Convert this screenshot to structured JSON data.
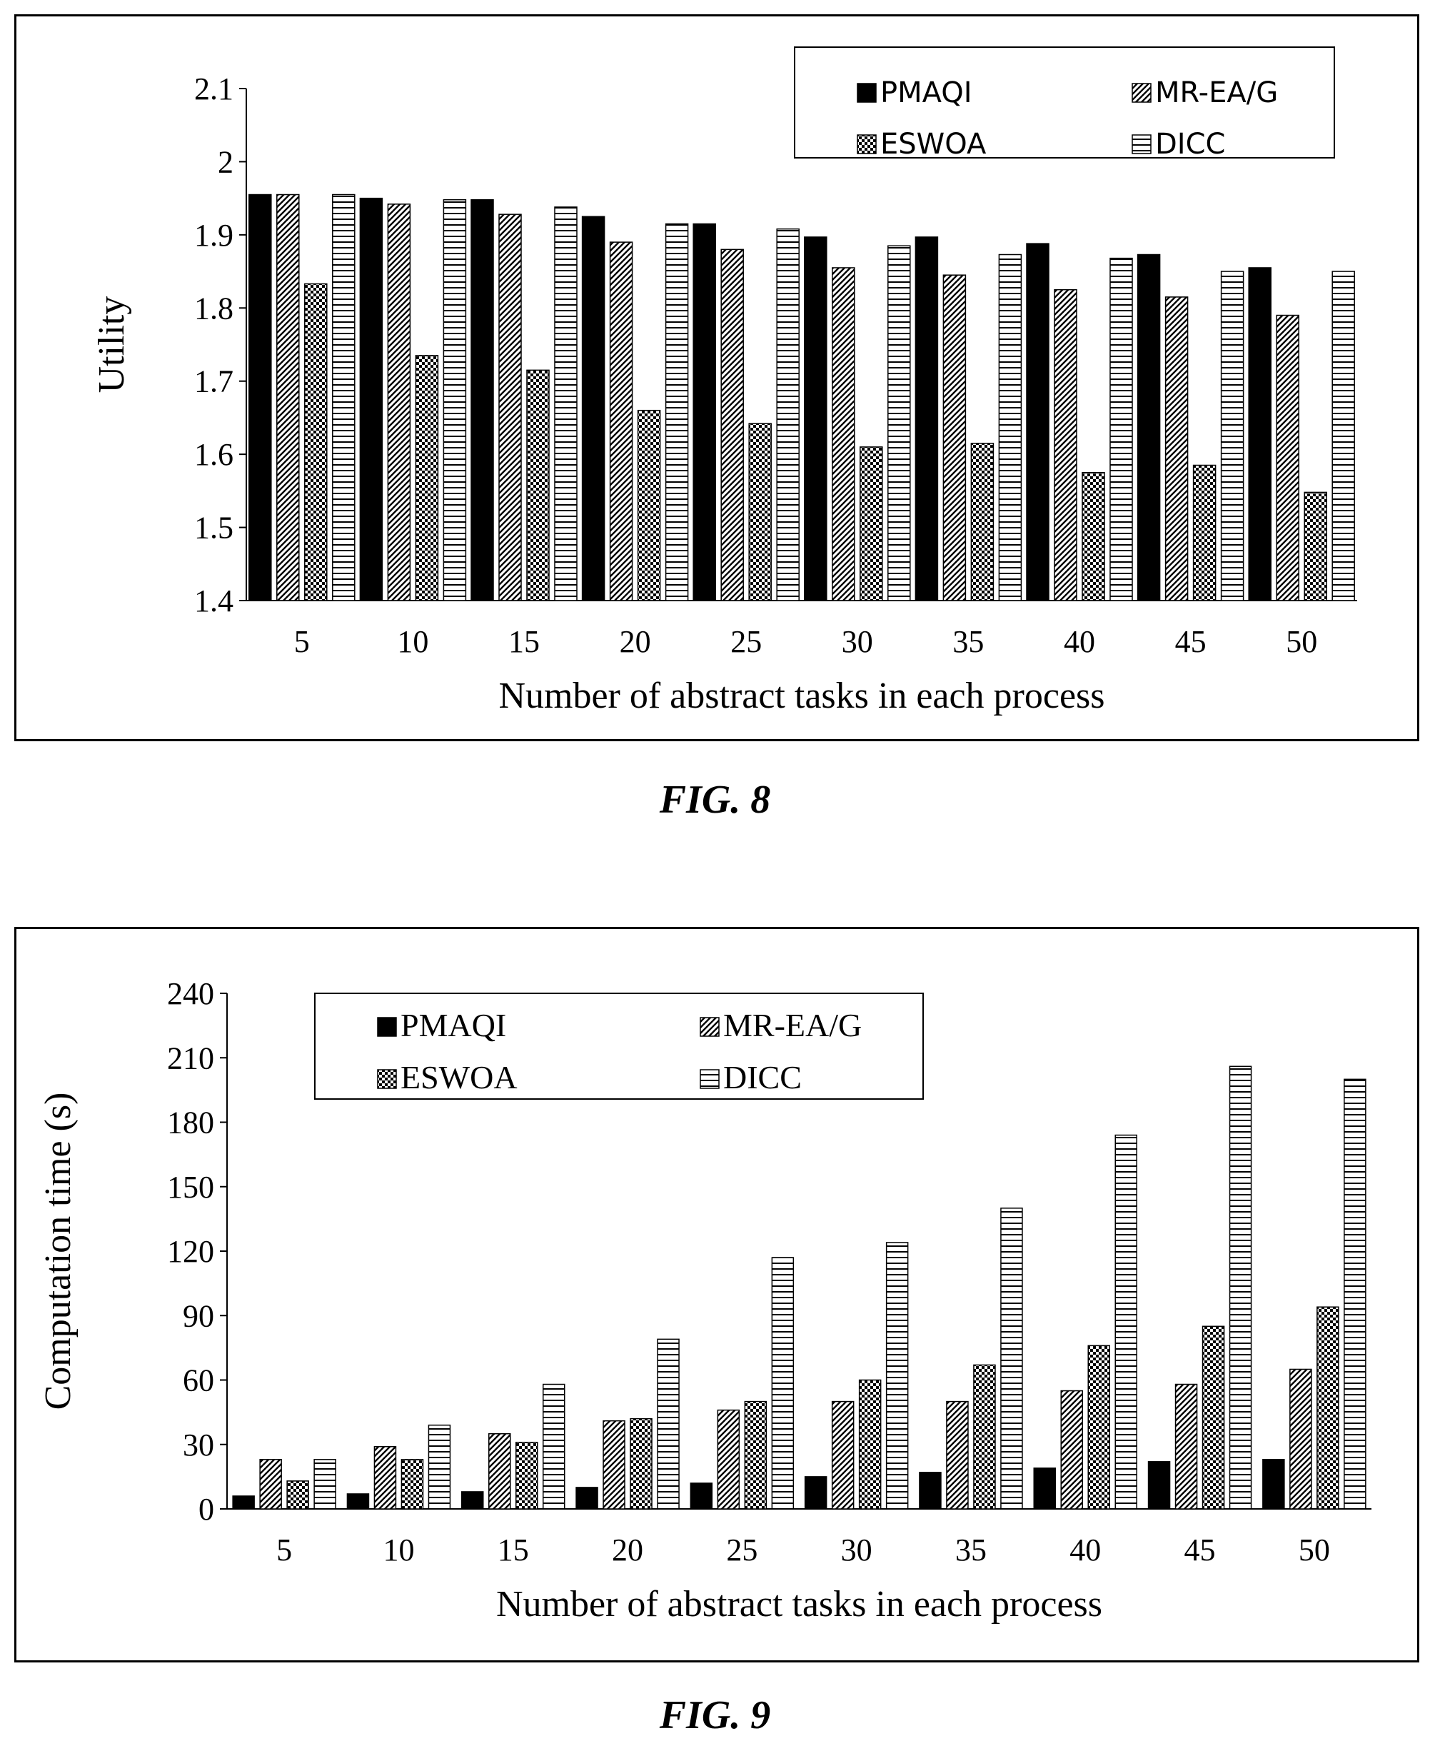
{
  "colors": {
    "ink": "#000000",
    "paper": "#ffffff"
  },
  "chart_data": [
    {
      "type": "bar",
      "figure_label": "FIG. 8",
      "xlabel": "Number of abstract tasks in each process",
      "ylabel": "Utility",
      "categories": [
        "5",
        "10",
        "15",
        "20",
        "25",
        "30",
        "35",
        "40",
        "45",
        "50"
      ],
      "ylim": [
        1.4,
        2.1
      ],
      "yticks": [
        "1.4",
        "1.5",
        "1.6",
        "1.7",
        "1.8",
        "1.9",
        "2",
        "2.1"
      ],
      "grid": false,
      "legend_position": "top-right",
      "series": [
        {
          "name": "PMAQI",
          "pattern": "solid",
          "values": [
            1.955,
            1.95,
            1.948,
            1.925,
            1.915,
            1.897,
            1.897,
            1.888,
            1.873,
            1.855
          ]
        },
        {
          "name": "MR-EA/G",
          "pattern": "diagonal",
          "values": [
            1.955,
            1.942,
            1.928,
            1.89,
            1.88,
            1.855,
            1.845,
            1.825,
            1.815,
            1.79
          ]
        },
        {
          "name": "ESWOA",
          "pattern": "checker",
          "values": [
            1.833,
            1.735,
            1.715,
            1.66,
            1.642,
            1.61,
            1.615,
            1.575,
            1.585,
            1.548
          ]
        },
        {
          "name": "DICC",
          "pattern": "horizontal",
          "values": [
            1.955,
            1.948,
            1.938,
            1.915,
            1.908,
            1.885,
            1.873,
            1.868,
            1.85,
            1.85
          ]
        }
      ]
    },
    {
      "type": "bar",
      "figure_label": "FIG. 9",
      "xlabel": "Number of abstract tasks in each process",
      "ylabel": "Computation time (s)",
      "categories": [
        "5",
        "10",
        "15",
        "20",
        "25",
        "30",
        "35",
        "40",
        "45",
        "50"
      ],
      "ylim": [
        0,
        240
      ],
      "yticks": [
        "0",
        "30",
        "60",
        "90",
        "120",
        "150",
        "180",
        "210",
        "240"
      ],
      "grid": false,
      "legend_position": "top-left",
      "series": [
        {
          "name": "PMAQI",
          "pattern": "solid",
          "values": [
            6,
            7,
            8,
            10,
            12,
            15,
            17,
            19,
            22,
            23
          ]
        },
        {
          "name": "MR-EA/G",
          "pattern": "diagonal",
          "values": [
            23,
            29,
            35,
            41,
            46,
            50,
            50,
            55,
            58,
            65
          ]
        },
        {
          "name": "ESWOA",
          "pattern": "checker",
          "values": [
            13,
            23,
            31,
            42,
            50,
            60,
            67,
            76,
            85,
            94
          ]
        },
        {
          "name": "DICC",
          "pattern": "horizontal",
          "values": [
            23,
            39,
            58,
            79,
            117,
            124,
            140,
            174,
            206,
            200
          ]
        }
      ]
    }
  ]
}
